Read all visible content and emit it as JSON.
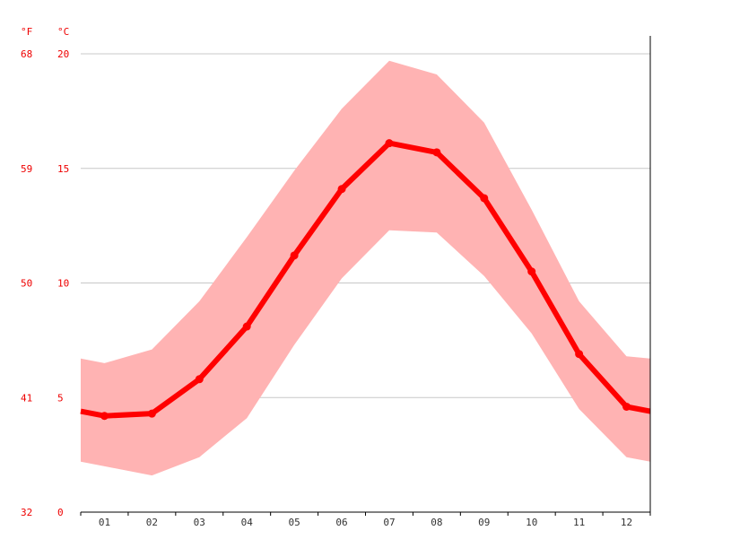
{
  "chart_data": {
    "type": "line",
    "units": {
      "fahrenheit": "°F",
      "celsius": "°C"
    },
    "categories": [
      "01",
      "02",
      "03",
      "04",
      "05",
      "06",
      "07",
      "08",
      "09",
      "10",
      "11",
      "12"
    ],
    "y_ticks_celsius": [
      "20",
      "15",
      "10",
      "5",
      "0"
    ],
    "y_ticks_fahrenheit": [
      "68",
      "59",
      "50",
      "41",
      "32"
    ],
    "ylim": [
      0,
      20
    ],
    "grid": true,
    "series": [
      {
        "values": [
          4.2,
          4.3,
          5.8,
          8.1,
          11.2,
          14.1,
          16.1,
          15.7,
          13.7,
          10.5,
          6.9,
          4.6
        ]
      }
    ],
    "range_band": {
      "max": [
        6.5,
        7.1,
        9.2,
        12.0,
        14.9,
        17.6,
        19.7,
        19.1,
        17.0,
        13.2,
        9.2,
        6.8
      ],
      "min": [
        2.0,
        1.6,
        2.4,
        4.1,
        7.3,
        10.2,
        12.3,
        12.2,
        10.3,
        7.8,
        4.5,
        2.4
      ],
      "edge_left": {
        "max": 6.7,
        "min": 2.2
      },
      "edge_right": {
        "max": 6.7,
        "min": 2.2
      }
    },
    "line_edges": {
      "left": 4.4,
      "right": 4.4
    },
    "colors": {
      "line": "#ff0000",
      "band": "#ffb3b3",
      "grid": "#c8c8c8",
      "axis": "#000000",
      "y_labels": "#ee0000",
      "x_labels": "#333333"
    }
  }
}
